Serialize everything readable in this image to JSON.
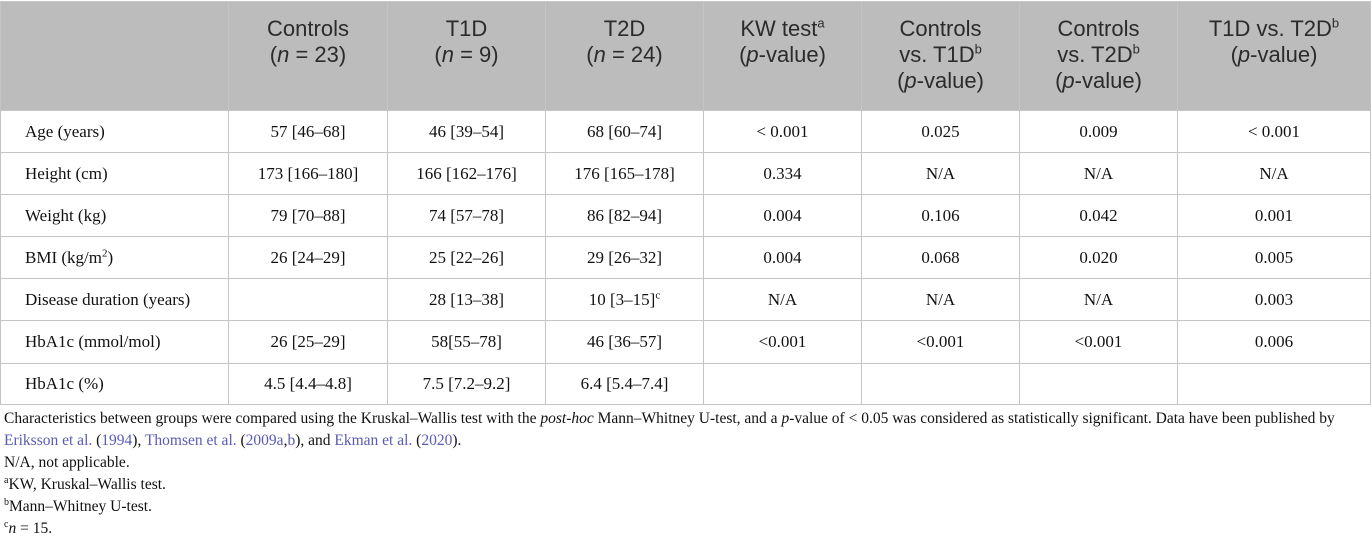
{
  "table": {
    "headers": [
      {
        "key": "blank",
        "lines": [
          [
            {
              "t": ""
            }
          ]
        ]
      },
      {
        "key": "controls",
        "lines": [
          [
            {
              "t": "Controls"
            }
          ],
          [
            {
              "t": "("
            },
            {
              "t": "n",
              "i": true
            },
            {
              "t": " = 23)"
            }
          ]
        ]
      },
      {
        "key": "t1d",
        "lines": [
          [
            {
              "t": "T1D"
            }
          ],
          [
            {
              "t": "("
            },
            {
              "t": "n",
              "i": true
            },
            {
              "t": " = 9)"
            }
          ]
        ]
      },
      {
        "key": "t2d",
        "lines": [
          [
            {
              "t": "T2D"
            }
          ],
          [
            {
              "t": "("
            },
            {
              "t": "n",
              "i": true
            },
            {
              "t": " = 24)"
            }
          ]
        ]
      },
      {
        "key": "kw-test",
        "lines": [
          [
            {
              "t": "KW test"
            },
            {
              "t": "a",
              "sup": true
            }
          ],
          [
            {
              "t": "("
            },
            {
              "t": "p",
              "i": true
            },
            {
              "t": "-value)"
            }
          ]
        ]
      },
      {
        "key": "controls-vs-t1d",
        "lines": [
          [
            {
              "t": "Controls"
            }
          ],
          [
            {
              "t": "vs. T1D"
            },
            {
              "t": "b",
              "sup": true
            }
          ],
          [
            {
              "t": "("
            },
            {
              "t": "p",
              "i": true
            },
            {
              "t": "-value)"
            }
          ]
        ]
      },
      {
        "key": "controls-vs-t2d",
        "lines": [
          [
            {
              "t": "Controls"
            }
          ],
          [
            {
              "t": "vs. T2D"
            },
            {
              "t": "b",
              "sup": true
            }
          ],
          [
            {
              "t": "("
            },
            {
              "t": "p",
              "i": true
            },
            {
              "t": "-value)"
            }
          ]
        ]
      },
      {
        "key": "t1d-vs-t2d",
        "lines": [
          [
            {
              "t": "T1D vs. T2D"
            },
            {
              "t": "b",
              "sup": true
            }
          ],
          [
            {
              "t": "("
            },
            {
              "t": "p",
              "i": true
            },
            {
              "t": "-value)"
            }
          ]
        ]
      }
    ],
    "rows": [
      {
        "label": "Age (years)",
        "cells": [
          "57 [46–68]",
          "46 [39–54]",
          "68 [60–74]",
          "< 0.001",
          "0.025",
          "0.009",
          "< 0.001"
        ]
      },
      {
        "label": "Height (cm)",
        "cells": [
          "173 [166–180]",
          "166 [162–176]",
          "176 [165–178]",
          "0.334",
          "N/A",
          "N/A",
          "N/A"
        ]
      },
      {
        "label": "Weight (kg)",
        "cells": [
          "79 [70–88]",
          "74 [57–78]",
          "86 [82–94]",
          "0.004",
          "0.106",
          "0.042",
          "0.001"
        ]
      },
      {
        "label": "BMI (kg/m",
        "label_sup": "2",
        "label_end": ")",
        "cells": [
          "26 [24–29]",
          "25 [22–26]",
          "29 [26–32]",
          "0.004",
          "0.068",
          "0.020",
          "0.005"
        ]
      },
      {
        "label": "Disease duration (years)",
        "cells": [
          "",
          "28 [13–38]",
          "10 [3–15]",
          "N/A",
          "N/A",
          "N/A",
          "0.003"
        ],
        "t2d_sup": "c"
      },
      {
        "label": "HbA1c (mmol/mol)",
        "cells": [
          "26 [25–29]",
          "58[55–78]",
          "46 [36–57]",
          "<0.001",
          "<0.001",
          "<0.001",
          "0.006"
        ]
      },
      {
        "label": "HbA1c (%)",
        "cells": [
          "4.5 [4.4–4.8]",
          "7.5 [7.2–9.2]",
          "6.4 [5.4–7.4]",
          "",
          "",
          "",
          ""
        ]
      }
    ]
  },
  "notes": {
    "main": [
      {
        "t": "Characteristics between groups were compared using the Kruskal–Wallis test with the "
      },
      {
        "t": "post-hoc",
        "i": true
      },
      {
        "t": " Mann–Whitney U-test, and a "
      },
      {
        "t": "p",
        "i": true
      },
      {
        "t": "-value of < 0.05 was considered as statistically significant. Data have been published by "
      },
      {
        "t": "Eriksson et al.",
        "link": true
      },
      {
        "t": " ("
      },
      {
        "t": "1994",
        "link": true
      },
      {
        "t": "), "
      },
      {
        "t": "Thomsen et al.",
        "link": true
      },
      {
        "t": " ("
      },
      {
        "t": "2009a",
        "link": true
      },
      {
        "t": ","
      },
      {
        "t": "b",
        "link": true
      },
      {
        "t": "), and "
      },
      {
        "t": "Ekman et al.",
        "link": true
      },
      {
        "t": " ("
      },
      {
        "t": "2020",
        "link": true
      },
      {
        "t": ")."
      }
    ],
    "abbrev": "N/A, not applicable.",
    "footnotes": [
      {
        "mark": "a",
        "text": "KW, Kruskal–Wallis test."
      },
      {
        "mark": "b",
        "text": "Mann–Whitney U-test."
      },
      {
        "mark": "c",
        "italic_prefix": "n",
        "text": " = 15."
      }
    ]
  },
  "colors": {
    "header_bg": "#bcbcbc",
    "border": "#c4c4c4",
    "link": "#5a5ab5",
    "text": "#111111"
  }
}
